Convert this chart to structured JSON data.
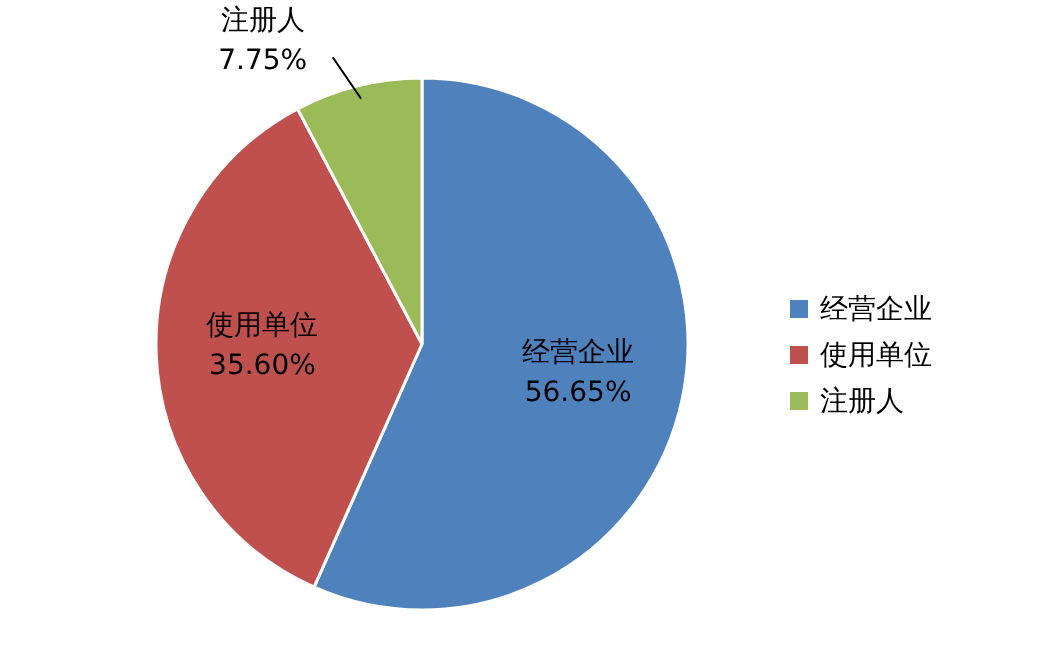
{
  "chart_data": {
    "type": "pie",
    "categories": [
      "经营企业",
      "使用单位",
      "注册人"
    ],
    "values": [
      56.65,
      35.6,
      7.75
    ],
    "value_labels": [
      "56.65%",
      "35.60%",
      "7.75%"
    ],
    "colors": [
      "#4f81bd",
      "#c0504d",
      "#9bbb59"
    ],
    "legend": "right"
  }
}
